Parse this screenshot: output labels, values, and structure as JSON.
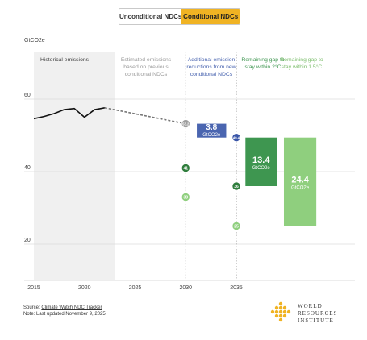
{
  "toggle": {
    "unconditional_label": "Unconditional NDCs",
    "conditional_label": "Conditional NDCs",
    "selected": "Conditional NDCs"
  },
  "colors": {
    "accent": "#f0b323",
    "historical_shade": "#f0f0f0",
    "reduction": "#4a65b0",
    "gap_2c": "#3e9650",
    "gap_15c": "#8fcf7e",
    "dot_gray": "#9e9e9e",
    "dot_2c": "#2f7d3c",
    "dot_15c": "#8fcf7e",
    "dot_blue": "#3a56a8"
  },
  "footer": {
    "source_prefix": "Source: ",
    "source_link": "Climate Watch NDC Tracker",
    "note": "Note: Last updated November 9, 2025."
  },
  "logo": {
    "line1": "WORLD",
    "line2": "RESOURCES",
    "line3": "INSTITUTE"
  },
  "chart_data": {
    "type": "line",
    "ylabel": "GtCO2e",
    "xlim": [
      2015,
      2040.5
    ],
    "ylim": [
      10,
      66
    ],
    "yticks": [
      20,
      40,
      60
    ],
    "xticks": [
      2015,
      2020,
      2025,
      2030,
      2035
    ],
    "grid": true,
    "historical": {
      "label": "Historical emissions",
      "x": [
        2015,
        2016,
        2017,
        2018,
        2019,
        2020,
        2021,
        2022
      ],
      "y": [
        54.6,
        55.2,
        56.0,
        57.1,
        57.4,
        55.0,
        57.1,
        57.6
      ]
    },
    "estimated": {
      "label": "Estimated emissions based on previous conditional NDCs",
      "x": [
        2022,
        2030
      ],
      "y": [
        57.6,
        53.2
      ]
    },
    "markers": [
      {
        "label": "53.2",
        "x": 2030,
        "y": 53.2,
        "color": "dot_gray"
      },
      {
        "label": "41",
        "x": 2030,
        "y": 41,
        "color": "dot_2c"
      },
      {
        "label": "33",
        "x": 2030,
        "y": 33,
        "color": "dot_15c"
      },
      {
        "label": "49.4",
        "x": 2035,
        "y": 49.4,
        "color": "dot_blue"
      },
      {
        "label": "36",
        "x": 2035,
        "y": 36,
        "color": "dot_2c"
      },
      {
        "label": "25",
        "x": 2035,
        "y": 25,
        "color": "dot_15c"
      }
    ],
    "bars": [
      {
        "label": "Additional emission reductions from new conditional NDCs",
        "value_label": "3.8",
        "unit_label": "GtCO2e",
        "x_start": 2031.1,
        "x_end": 2034,
        "y_low": 49.4,
        "y_high": 53.2,
        "color": "reduction"
      },
      {
        "label": "Remaining gap to stay within 2°C",
        "value_label": "13.4",
        "unit_label": "GtCO2e",
        "x_start": 2035.9,
        "x_end": 2039,
        "y_low": 36,
        "y_high": 49.4,
        "color": "gap_2c"
      },
      {
        "label": "Remaining gap to stay within 1.5°C",
        "value_label": "24.4",
        "unit_label": "GtCO2e",
        "x_start": 2039.7,
        "x_end": 2042.9,
        "y_low": 25,
        "y_high": 49.4,
        "color": "gap_15c"
      }
    ],
    "region_labels": {
      "historical": [
        "Historical emissions"
      ],
      "estimated": [
        "Estimated emissions",
        "based on previous",
        "conditional NDCs"
      ],
      "reduction": [
        "Additional emission",
        "reductions from new",
        "conditional NDCs"
      ],
      "gap_2c": [
        "Remaining gap to",
        "stay within 2°C"
      ],
      "gap_15c": [
        "Remaining gap to",
        "stay within 1.5°C"
      ]
    }
  }
}
